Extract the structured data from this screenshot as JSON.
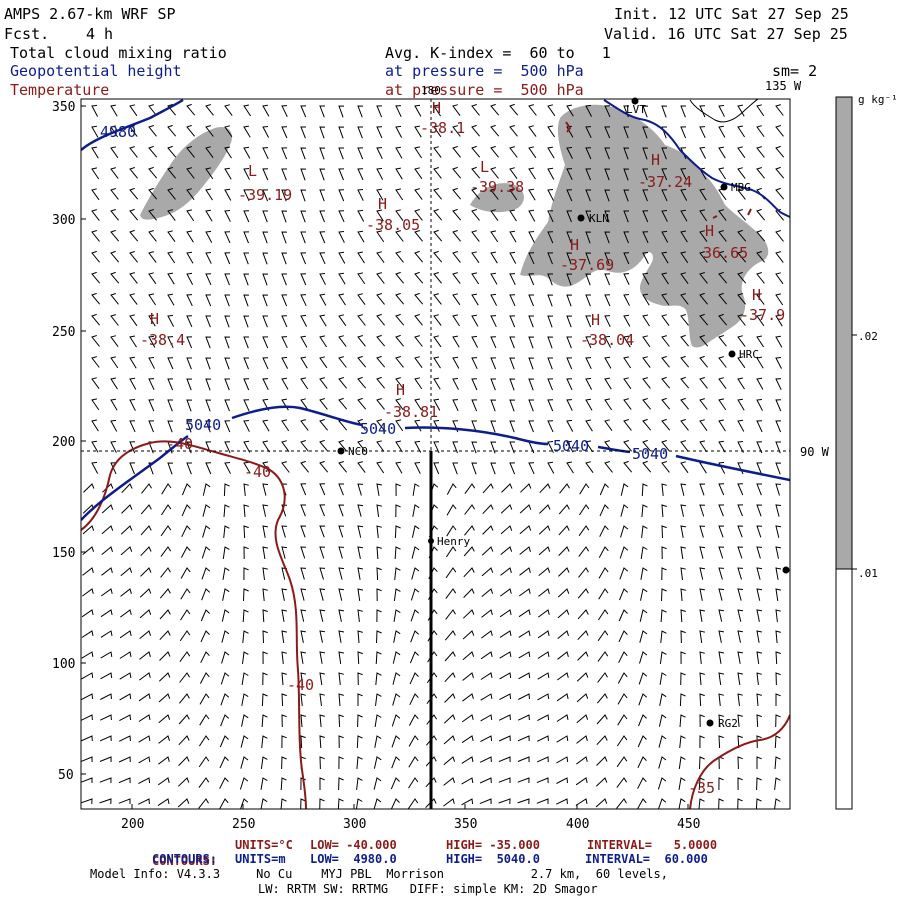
{
  "header": {
    "model": "AMPS 2.67-km WRF SP",
    "fcst_label": "Fcst.",
    "fcst_value": "4 h",
    "init": "Init. 12 UTC Sat 27 Sep 25",
    "valid": "Valid. 16 UTC Sat 27 Sep 25",
    "field1": "Total cloud mixing ratio",
    "field2": "Geopotential height",
    "field3": "Temperature",
    "avg": "Avg. K-index =  60 to   1",
    "pressure1": "at pressure =  500 hPa",
    "pressure2": "at pressure =  500 hPa",
    "sm": "sm= 2"
  },
  "map": {
    "lon_top": "180",
    "lon_135": "135 W",
    "lon_90": "90 W",
    "y_ticks": [
      "350",
      "300",
      "250",
      "200",
      "150",
      "100",
      "50"
    ],
    "x_ticks": [
      "200",
      "250",
      "300",
      "350",
      "400",
      "450"
    ],
    "height_labels": [
      "4980",
      "5040",
      "5040",
      "5040",
      "5040"
    ],
    "temp_contour_labels": [
      "-40",
      "-40",
      "-40",
      "-35"
    ],
    "highs_lows": [
      {
        "letter": "H",
        "value": "-38.1"
      },
      {
        "letter": "L",
        "value": "-39.19"
      },
      {
        "letter": "H",
        "value": "-38.05"
      },
      {
        "letter": "L",
        "value": "-39.38"
      },
      {
        "letter": "H",
        "value": "-37.24"
      },
      {
        "letter": "H",
        "value": "-37.69"
      },
      {
        "letter": "H",
        "value": "36.65"
      },
      {
        "letter": "H",
        "value": "-37.9"
      },
      {
        "letter": "H",
        "value": "-38.04"
      },
      {
        "letter": "H",
        "value": "-38.4"
      },
      {
        "letter": "H",
        "value": "-38.81"
      }
    ],
    "stations": [
      "LVT",
      "MBG",
      "KLN",
      "HRC",
      "NCO",
      "Henry",
      "RG2"
    ],
    "colors": {
      "height": "#0d1e8c",
      "temperature": "#8b1a1a",
      "cloud": "#a9a9a9"
    }
  },
  "colorbar": {
    "unit": "g kg⁻¹",
    "ticks": [
      ".02",
      ".01"
    ]
  },
  "footer": {
    "c1_label": "CONTOURS:",
    "c1_units": "UNITS=°C",
    "c1_low": "LOW= -40.000",
    "c1_high": "HIGH= -35.000",
    "c1_int": "INTERVAL=   5.0000",
    "c2_label": "CONTOURS:",
    "c2_units": "UNITS=m",
    "c2_low": "LOW=  4980.0",
    "c2_high": "HIGH=  5040.0",
    "c2_int": "INTERVAL=  60.000",
    "model_info": "Model Info: V4.3.3     No Cu    MYJ PBL  Morrison            2.7 km,  60 levels,",
    "physics": "LW: RRTM SW: RRTMG   DIFF: simple KM: 2D Smagor"
  }
}
